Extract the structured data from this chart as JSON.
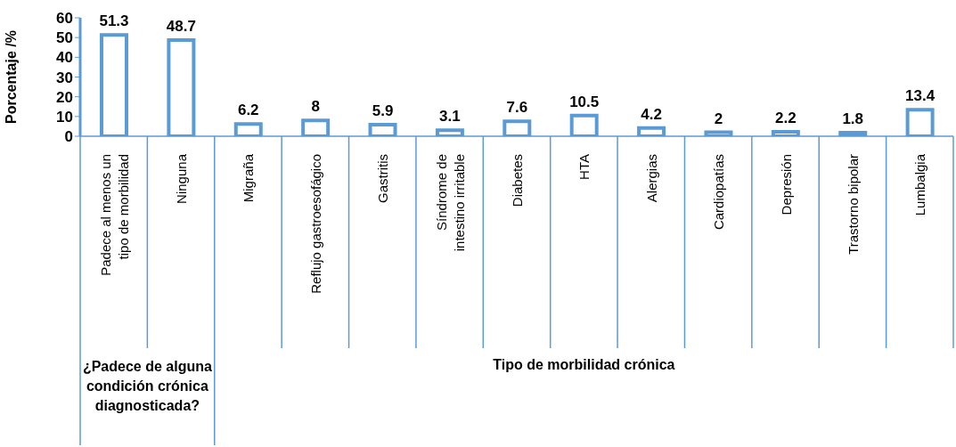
{
  "chart_data": {
    "type": "bar",
    "ylabel": "Porcentaje /%",
    "categories": [
      "Padece al menos un tipo de morbilidad",
      "Ninguna",
      "Migraña",
      "Reflujo gastroesofágico",
      "Gastritis",
      "Síndrome de intestino irritable",
      "Diabetes",
      "HTA",
      "Alergias",
      "Cardiopatías",
      "Depresión",
      "Trastorno bipolar",
      "Lumbalgia"
    ],
    "values": [
      51.3,
      48.7,
      6.2,
      8,
      5.9,
      3.1,
      7.6,
      10.5,
      4.2,
      2,
      2.2,
      1.8,
      13.4
    ],
    "color": "#5b9bd5",
    "ylim": [
      0,
      60
    ],
    "yticks": [
      0,
      10,
      20,
      30,
      40,
      50,
      60
    ],
    "grid": false,
    "data_labels": true,
    "annotations": [
      "¿Padece de alguna condición crónica diagnosticada?",
      "Tipo de morbilidad crónica"
    ]
  }
}
